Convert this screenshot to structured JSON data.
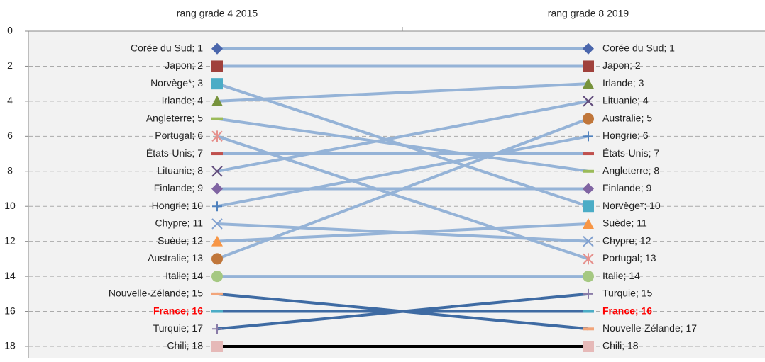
{
  "chart_data": {
    "type": "slope",
    "categories": [
      "rang grade 4 2015",
      "rang grade 8 2019"
    ],
    "ylim": [
      0,
      18
    ],
    "yticks": [
      0,
      2,
      4,
      6,
      8,
      10,
      12,
      14,
      16,
      18
    ],
    "y_inverted": true,
    "grid": true,
    "series": [
      {
        "values": [
          1,
          1
        ],
        "value_labels": [
          "Corée du Sud; 1",
          "Corée du Sud; 1"
        ],
        "marker": "diamond",
        "color": "#4a66ac",
        "line_color": "#95b3d7"
      },
      {
        "values": [
          2,
          2
        ],
        "value_labels": [
          "Japon; 2",
          "Japon; 2"
        ],
        "marker": "square",
        "color": "#a0413c",
        "line_color": "#95b3d7"
      },
      {
        "values": [
          3,
          10
        ],
        "value_labels": [
          "Norvège*; 3",
          "Norvège*; 10"
        ],
        "marker": "square",
        "color": "#4bacc6",
        "line_color": "#95b3d7"
      },
      {
        "values": [
          4,
          3
        ],
        "value_labels": [
          "Irlande; 4",
          "Irlande; 3"
        ],
        "marker": "triangle",
        "color": "#77933c",
        "line_color": "#95b3d7"
      },
      {
        "values": [
          5,
          8
        ],
        "value_labels": [
          "Angleterre; 5",
          "Angleterre; 8"
        ],
        "marker": "dash",
        "color": "#9bbb59",
        "line_color": "#95b3d7"
      },
      {
        "values": [
          6,
          13
        ],
        "value_labels": [
          "Portugal; 6",
          "Portugal; 13"
        ],
        "marker": "asterisk",
        "color": "#e6908c",
        "line_color": "#95b3d7"
      },
      {
        "values": [
          7,
          7
        ],
        "value_labels": [
          "États-Unis; 7",
          "États-Unis; 7"
        ],
        "marker": "dash",
        "color": "#c0504d",
        "line_color": "#95b3d7"
      },
      {
        "values": [
          8,
          4
        ],
        "value_labels": [
          "Lituanie; 8",
          "Lituanie; 4"
        ],
        "marker": "x",
        "color": "#604a7b",
        "line_color": "#95b3d7"
      },
      {
        "values": [
          9,
          9
        ],
        "value_labels": [
          "Finlande; 9",
          "Finlande; 9"
        ],
        "marker": "diamond",
        "color": "#8064a2",
        "line_color": "#95b3d7"
      },
      {
        "values": [
          10,
          6
        ],
        "value_labels": [
          "Hongrie; 10",
          "Hongrie; 6"
        ],
        "marker": "plus",
        "color": "#4f81bd",
        "line_color": "#95b3d7"
      },
      {
        "values": [
          11,
          12
        ],
        "value_labels": [
          "Chypre; 11",
          "Chypre; 12"
        ],
        "marker": "x",
        "color": "#7f9fcf",
        "line_color": "#95b3d7"
      },
      {
        "values": [
          12,
          11
        ],
        "value_labels": [
          "Suède; 12",
          "Suède; 11"
        ],
        "marker": "triangle",
        "color": "#f79646",
        "line_color": "#95b3d7"
      },
      {
        "values": [
          13,
          5
        ],
        "value_labels": [
          "Australie; 13",
          "Australie; 5"
        ],
        "marker": "circle",
        "color": "#c0763a",
        "line_color": "#95b3d7"
      },
      {
        "values": [
          14,
          14
        ],
        "value_labels": [
          "Italie; 14",
          "Italie; 14"
        ],
        "marker": "circle",
        "color": "#a5c882",
        "line_color": "#95b3d7"
      },
      {
        "values": [
          15,
          17
        ],
        "value_labels": [
          "Nouvelle-Zélande; 15",
          "Nouvelle-Zélande; 17"
        ],
        "marker": "dash",
        "color": "#f2a57a",
        "line_color": "#3f6ba3"
      },
      {
        "values": [
          16,
          16
        ],
        "value_labels": [
          "France; 16",
          "France; 16"
        ],
        "marker": "dash",
        "color": "#4bacc6",
        "line_color": "#3f6ba3",
        "label_color": "#ff0000",
        "label_bold": true
      },
      {
        "values": [
          17,
          15
        ],
        "value_labels": [
          "Turquie; 17",
          "Turquie; 15"
        ],
        "marker": "plus",
        "color": "#8a7ca8",
        "line_color": "#3f6ba3"
      },
      {
        "values": [
          18,
          18
        ],
        "value_labels": [
          "Chili; 18",
          "Chili; 18"
        ],
        "marker": "square",
        "color": "#e6b9b8",
        "line_color": "#000000"
      }
    ]
  }
}
